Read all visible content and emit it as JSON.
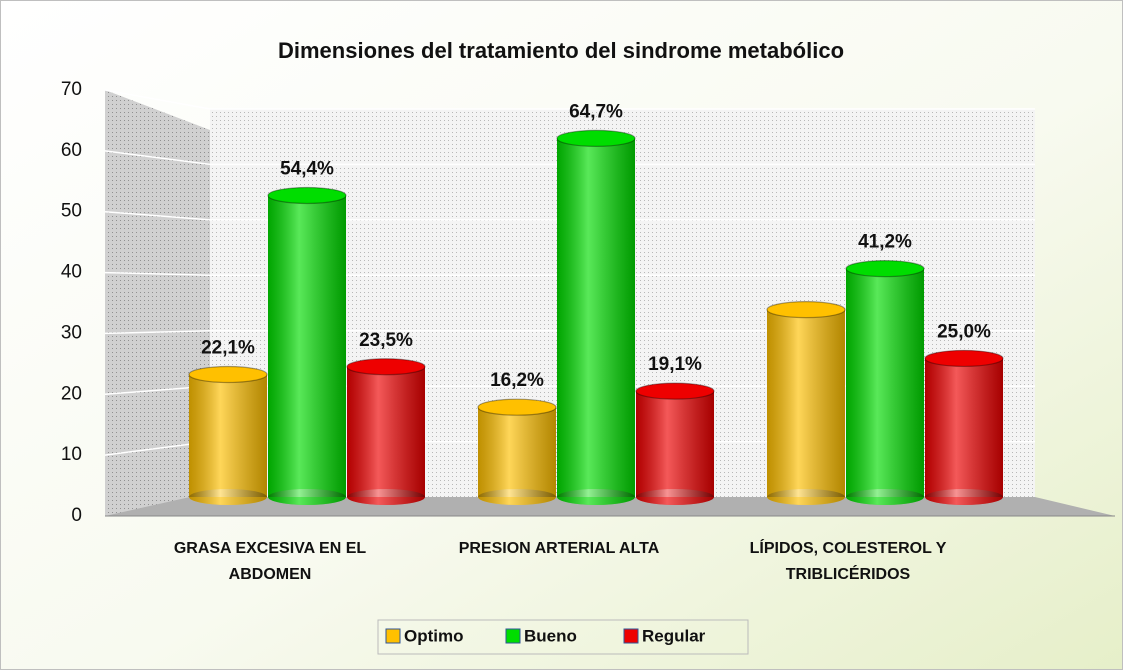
{
  "chart_data": {
    "type": "bar",
    "title": "Dimensiones del tratamiento del sindrome metabólico",
    "categories": [
      "GRASA EXCESIVA EN EL ABDOMEN",
      "PRESION ARTERIAL ALTA",
      "LÍPIDOS, COLESTEROL Y TRIBLICÉRIDOS"
    ],
    "series": [
      {
        "name": "Optimo",
        "color": "#ffc000",
        "values": [
          22.1,
          16.2,
          33.8
        ],
        "value_labels": [
          "22,1%",
          "16,2%",
          null
        ]
      },
      {
        "name": "Bueno",
        "color": "#00dd00",
        "values": [
          54.4,
          64.7,
          41.2
        ],
        "value_labels": [
          "54,4%",
          "64,7%",
          "41,2%"
        ]
      },
      {
        "name": "Regular",
        "color": "#ee0000",
        "values": [
          23.5,
          19.1,
          25.0
        ],
        "value_labels": [
          "23,5%",
          "19,1%",
          "25,0%"
        ]
      }
    ],
    "ylim": [
      0,
      70
    ],
    "yticks": [
      0,
      10,
      20,
      30,
      40,
      50,
      60,
      70
    ],
    "grid": true,
    "legend": "bottom"
  }
}
